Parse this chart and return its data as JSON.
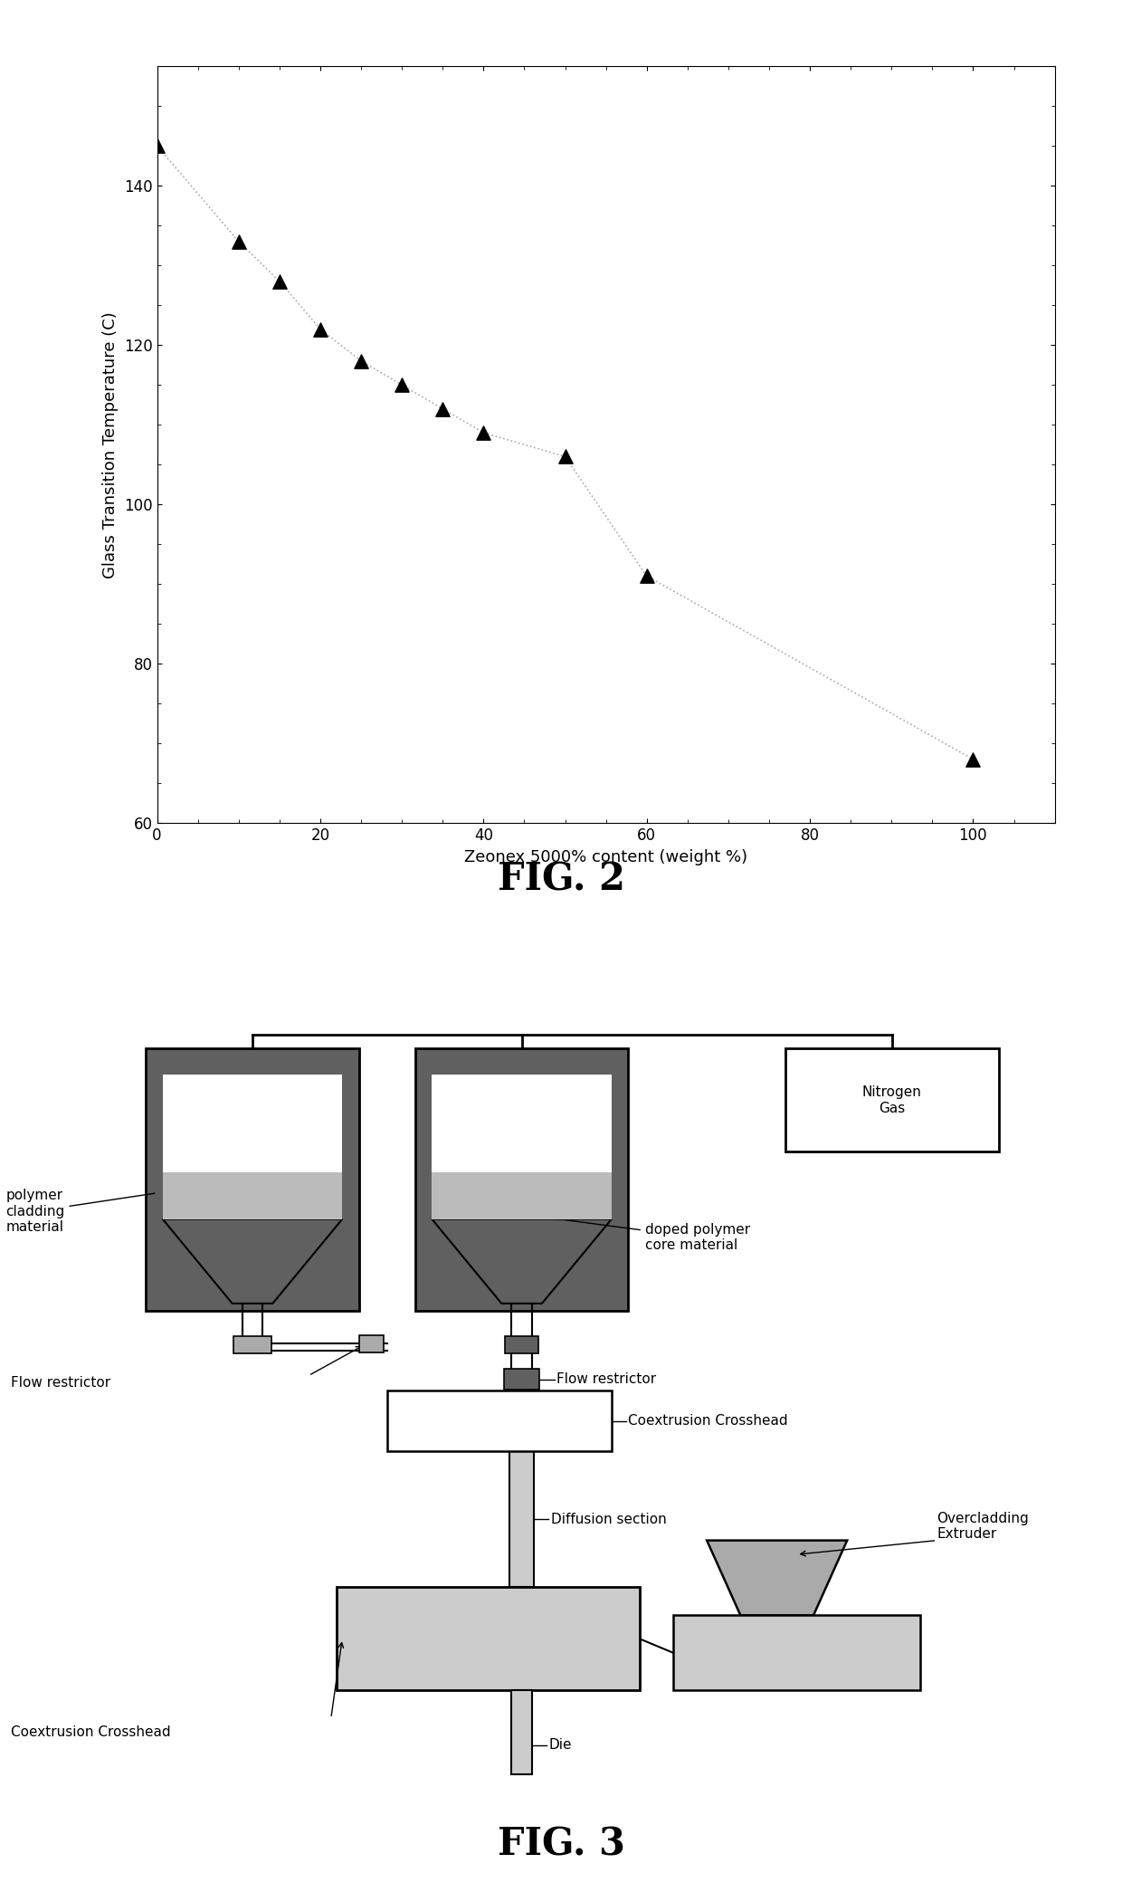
{
  "fig2": {
    "x": [
      0,
      10,
      15,
      20,
      25,
      30,
      35,
      40,
      50,
      60,
      100
    ],
    "y": [
      145,
      133,
      128,
      122,
      118,
      115,
      112,
      109,
      106,
      91,
      68
    ],
    "xlabel": "Zeonex 5000% content (weight %)",
    "ylabel": "Glass Transition Temperature (C)",
    "xlim": [
      0,
      110
    ],
    "ylim": [
      60,
      155
    ],
    "xticks": [
      0,
      20,
      40,
      60,
      80,
      100
    ],
    "yticks": [
      60,
      80,
      100,
      120,
      140
    ],
    "marker": "^",
    "marker_color": "black",
    "marker_size": 11,
    "line_color": "#aaaaaa",
    "line_style": ":",
    "fig_label": "FIG. 2"
  },
  "fig3": {
    "fig_label": "FIG. 3",
    "labels": {
      "polymer_cladding": "polymer\ncladding\nmaterial",
      "doped_polymer": "doped polymer\ncore material",
      "nitrogen_gas": "Nitrogen\nGas",
      "flow_restrictor_top": "Flow restrictor",
      "flow_restrictor_left": "Flow restrictor",
      "coextrusion_crosshead_top": "Coextrusion Crosshead",
      "coextrusion_crosshead_bottom": "Coextrusion Crosshead",
      "diffusion_section": "Diffusion section",
      "overcladding_extruder": "Overcladding\nExtruder",
      "die": "Die"
    }
  },
  "background_color": "#ffffff",
  "fig2_label_fontsize": 30,
  "fig3_label_fontsize": 30,
  "axis_fontsize": 13,
  "tick_fontsize": 12,
  "diagram_fontsize": 11,
  "dark_gray": "#606060",
  "med_gray": "#aaaaaa",
  "light_gray": "#cccccc",
  "hopper_fill": "#bbbbbb"
}
